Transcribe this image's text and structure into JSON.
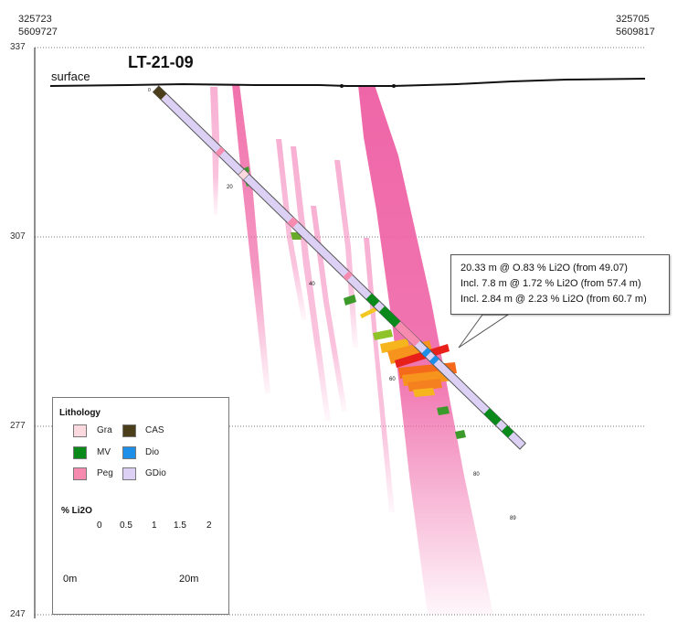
{
  "section": {
    "left_coord": {
      "easting": "325723",
      "northing": "5609727"
    },
    "right_coord": {
      "easting": "325705",
      "northing": "5609817"
    },
    "y_ticks": [
      "337",
      "307",
      "277",
      "247"
    ],
    "hole_id": "LT-21-09",
    "surface_label": "surface"
  },
  "drillhole": {
    "depth_labels": [
      "0",
      "20",
      "40",
      "60",
      "80",
      "89"
    ]
  },
  "callout": {
    "lines": [
      "20.33 m @ O.83 % Li2O (from 49.07)",
      "Incl.  7.8 m @ 1.72 % Li2O (from 57.4 m)",
      "Incl. 2.84 m @ 2.23 % Li2O (from 60.7 m)"
    ]
  },
  "legend": {
    "title": "Lithology",
    "items": [
      {
        "code": "Gra",
        "color": "#fcd9df"
      },
      {
        "code": "CAS",
        "color": "#4a3f1a"
      },
      {
        "code": "MV",
        "color": "#0a8a1a"
      },
      {
        "code": "Dio",
        "color": "#1e8fe8"
      },
      {
        "code": "Peg",
        "color": "#f78aaf"
      },
      {
        "code": "GDio",
        "color": "#dcd0f5"
      }
    ],
    "colorbar": {
      "title": "% Li2O",
      "ticks": [
        "0",
        "0.5",
        "1",
        "1.5",
        "2"
      ]
    },
    "scalebar": {
      "start": "0m",
      "end": "20m"
    }
  }
}
